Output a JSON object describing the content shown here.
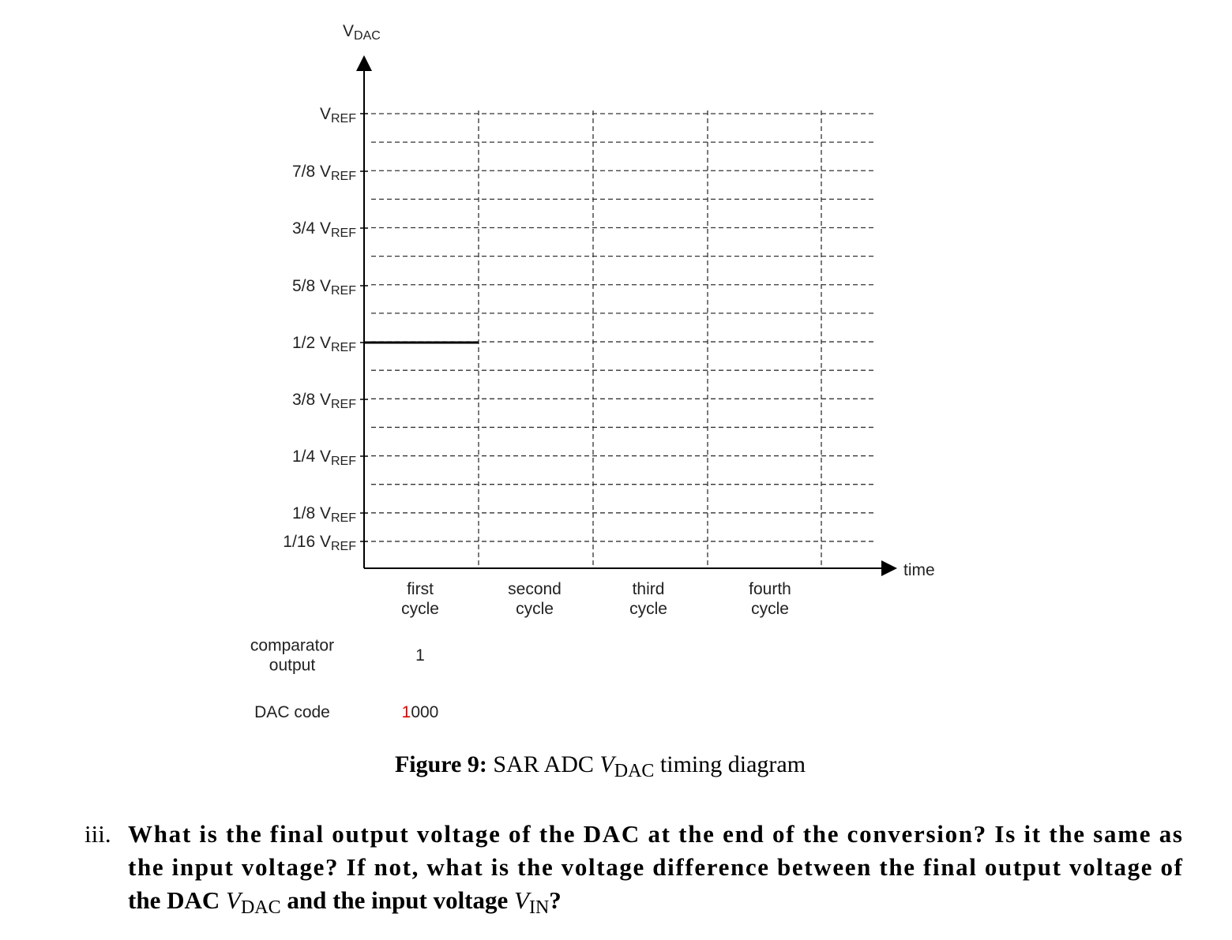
{
  "diagram": {
    "axis_label": {
      "main": "V",
      "sub": "DAC"
    },
    "y_labels": [
      {
        "main": "V",
        "sub": "REF"
      },
      {
        "main": "7/8 V",
        "sub": "REF"
      },
      {
        "main": "3/4 V",
        "sub": "REF"
      },
      {
        "main": "5/8 V",
        "sub": "REF"
      },
      {
        "main": "1/2 V",
        "sub": "REF"
      },
      {
        "main": "3/8 V",
        "sub": "REF"
      },
      {
        "main": "1/4 V",
        "sub": "REF"
      },
      {
        "main": "1/8 V",
        "sub": "REF"
      },
      {
        "main": "1/16 V",
        "sub": "REF"
      }
    ],
    "x_label": "time",
    "cycles": [
      [
        "first",
        "cycle"
      ],
      [
        "second",
        "cycle"
      ],
      [
        "third",
        "cycle"
      ],
      [
        "fourth",
        "cycle"
      ]
    ],
    "rows": [
      {
        "label": [
          "comparator",
          "output"
        ],
        "values": [
          "1"
        ]
      },
      {
        "label": [
          "DAC code"
        ],
        "values": [
          "1000"
        ]
      }
    ],
    "highlight_color": "#e00000"
  },
  "caption": {
    "bold": "Figure 9:",
    "text": " SAR ADC ",
    "var": "V",
    "sub": "DAC",
    "tail": " timing diagram"
  },
  "question": {
    "number": "iii.",
    "lines": [
      "What is the final output voltage of the DAC at the end of the conversion? Is it the same as",
      "the input voltage? If not, what is the voltage difference between the final output voltage of"
    ],
    "last": {
      "a": "the DAC ",
      "v1": "V",
      "s1": "DAC",
      "b": " and the input voltage ",
      "v2": "V",
      "s2": "IN",
      "c": "?"
    }
  }
}
